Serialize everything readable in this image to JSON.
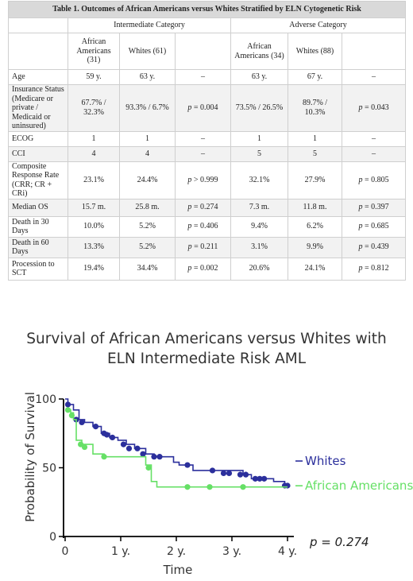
{
  "table": {
    "title": "Table 1. Outcomes of African Americans versus Whites Stratified by ELN Cytogenetic Risk",
    "group_intermediate": "Intermediate Category",
    "group_adverse": "Adverse Category",
    "col_aa_int": "African Americans (31)",
    "col_w_int": "Whites (61)",
    "col_aa_adv": "African Americans (34)",
    "col_w_adv": "Whites (88)",
    "rows": [
      {
        "label": "Age",
        "aa_i": "59 y.",
        "w_i": "63 y.",
        "p_i": "–",
        "aa_a": "63 y.",
        "w_a": "67 y.",
        "p_a": "–"
      },
      {
        "label": "Insurance Status (Medicare or private / Medicaid or uninsured)",
        "aa_i": "67.7% / 32.3%",
        "w_i": "93.3% / 6.7%",
        "p_i": "p = 0.004",
        "aa_a": "73.5% / 26.5%",
        "w_a": "89.7% / 10.3%",
        "p_a": "p = 0.043"
      },
      {
        "label": "ECOG",
        "aa_i": "1",
        "w_i": "1",
        "p_i": "–",
        "aa_a": "1",
        "w_a": "1",
        "p_a": "–"
      },
      {
        "label": "CCI",
        "aa_i": "4",
        "w_i": "4",
        "p_i": "–",
        "aa_a": "5",
        "w_a": "5",
        "p_a": "–"
      },
      {
        "label": "Composite Response Rate (CRR; CR + CRi)",
        "aa_i": "23.1%",
        "w_i": "24.4%",
        "p_i": "p > 0.999",
        "aa_a": "32.1%",
        "w_a": "27.9%",
        "p_a": "p = 0.805"
      },
      {
        "label": "Median OS",
        "aa_i": "15.7 m.",
        "w_i": "25.8 m.",
        "p_i": "p = 0.274",
        "aa_a": "7.3 m.",
        "w_a": "11.8 m.",
        "p_a": "p = 0.397"
      },
      {
        "label": "Death in 30 Days",
        "aa_i": "10.0%",
        "w_i": "5.2%",
        "p_i": "p = 0.406",
        "aa_a": "9.4%",
        "w_a": "6.2%",
        "p_a": "p = 0.685"
      },
      {
        "label": "Death in 60 Days",
        "aa_i": "13.3%",
        "w_i": "5.2%",
        "p_i": "p = 0.211",
        "aa_a": "3.1%",
        "w_a": "9.9%",
        "p_a": "p = 0.439"
      },
      {
        "label": "Procession to SCT",
        "aa_i": "19.4%",
        "w_i": "34.4%",
        "p_i": "p = 0.002",
        "aa_a": "20.6%",
        "w_a": "24.1%",
        "p_a": "p = 0.812"
      }
    ]
  },
  "chart_title_line1": "Survival of African Americans versus Whites with",
  "chart_title_line2": "ELN Intermediate Risk AML",
  "chart_data": {
    "type": "line",
    "xlabel": "Time",
    "ylabel": "Probability of Survival",
    "xlim": [
      0,
      4
    ],
    "ylim": [
      0,
      100
    ],
    "xticks": [
      "0",
      "1 y.",
      "2 y.",
      "3 y.",
      "4 y."
    ],
    "yticks": [
      "0",
      "50",
      "100"
    ],
    "annotation": "p = 0.274",
    "colors": {
      "whites": "#2b2f9c",
      "aa": "#66e066"
    },
    "series": [
      {
        "name": "Whites",
        "key": "whites",
        "steps": [
          [
            0,
            100
          ],
          [
            0.05,
            96
          ],
          [
            0.15,
            92
          ],
          [
            0.25,
            85
          ],
          [
            0.35,
            83
          ],
          [
            0.5,
            80
          ],
          [
            0.65,
            75
          ],
          [
            0.8,
            72
          ],
          [
            0.95,
            70
          ],
          [
            1.1,
            67
          ],
          [
            1.25,
            64
          ],
          [
            1.45,
            60
          ],
          [
            1.6,
            58
          ],
          [
            1.95,
            54
          ],
          [
            2.05,
            52
          ],
          [
            2.3,
            48
          ],
          [
            2.75,
            48
          ],
          [
            3.2,
            45
          ],
          [
            3.35,
            42
          ],
          [
            3.5,
            42
          ],
          [
            3.75,
            40
          ],
          [
            3.95,
            37
          ],
          [
            4.0,
            37
          ]
        ],
        "censored": [
          [
            0.05,
            96
          ],
          [
            0.2,
            85
          ],
          [
            0.3,
            83
          ],
          [
            0.55,
            80
          ],
          [
            0.7,
            75
          ],
          [
            0.75,
            74
          ],
          [
            0.85,
            72
          ],
          [
            1.05,
            67
          ],
          [
            1.15,
            64
          ],
          [
            1.3,
            64
          ],
          [
            1.4,
            60
          ],
          [
            1.6,
            58
          ],
          [
            1.7,
            58
          ],
          [
            2.2,
            52
          ],
          [
            2.65,
            48
          ],
          [
            2.85,
            46
          ],
          [
            2.95,
            46
          ],
          [
            3.15,
            45
          ],
          [
            3.25,
            45
          ],
          [
            3.42,
            42
          ],
          [
            3.5,
            42
          ],
          [
            3.58,
            42
          ],
          [
            3.95,
            37
          ],
          [
            4.0,
            37
          ]
        ]
      },
      {
        "name": "African Americans",
        "key": "aa",
        "steps": [
          [
            0,
            92
          ],
          [
            0.1,
            90
          ],
          [
            0.15,
            85
          ],
          [
            0.2,
            70
          ],
          [
            0.3,
            67
          ],
          [
            0.5,
            60
          ],
          [
            0.7,
            58
          ],
          [
            1.45,
            52
          ],
          [
            1.55,
            40
          ],
          [
            1.65,
            36
          ],
          [
            4.0,
            36
          ]
        ],
        "censored": [
          [
            0.05,
            92
          ],
          [
            0.12,
            88
          ],
          [
            0.28,
            67
          ],
          [
            0.35,
            65
          ],
          [
            0.7,
            58
          ],
          [
            1.5,
            50
          ],
          [
            2.2,
            36
          ],
          [
            2.6,
            36
          ],
          [
            3.2,
            36
          ]
        ]
      }
    ]
  }
}
